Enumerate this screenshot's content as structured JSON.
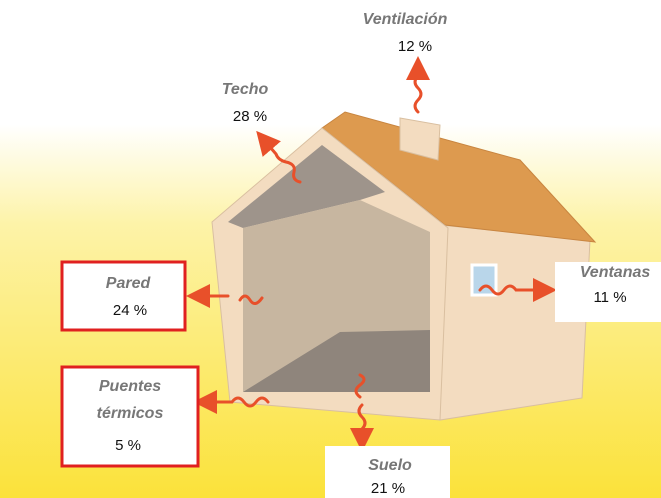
{
  "labels": [
    {
      "name": "Ventilación",
      "value": "12 %"
    },
    {
      "name": "Techo",
      "value": "28 %"
    },
    {
      "name": "Pared",
      "value": "24 %"
    },
    {
      "name": [
        "Puentes",
        "térmicos"
      ],
      "value": "5 %"
    },
    {
      "name": "Ventanas",
      "value": "11 %"
    },
    {
      "name": "Suelo",
      "value": "21 %"
    }
  ]
}
